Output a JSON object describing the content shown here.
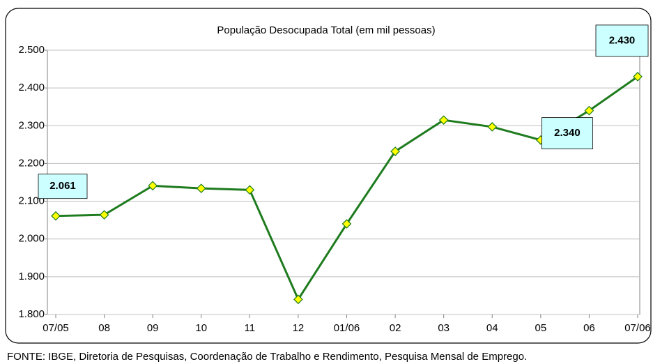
{
  "chart_data": {
    "type": "line",
    "title": "População Desocupada Total (em mil pessoas)",
    "categories": [
      "07/05",
      "08",
      "09",
      "10",
      "11",
      "12",
      "01/06",
      "02",
      "03",
      "04",
      "05",
      "06",
      "07/06"
    ],
    "series": [
      {
        "name": "População Desocupada Total",
        "color": "#1e7b1e",
        "marker_color": "#ffff00",
        "values": [
          2061,
          2064,
          2141,
          2134,
          2130,
          1840,
          2040,
          2232,
          2315,
          2297,
          2262,
          2340,
          2430
        ],
        "value_labels": [
          "2.061",
          null,
          null,
          null,
          null,
          null,
          null,
          null,
          null,
          null,
          null,
          "2.340",
          "2.430"
        ]
      }
    ],
    "ylim": [
      1800,
      2500
    ],
    "yticks": [
      {
        "value": 1800,
        "label": "1.800"
      },
      {
        "value": 1900,
        "label": "1.900"
      },
      {
        "value": 2000,
        "label": "2.000"
      },
      {
        "value": 2100,
        "label": "2.100"
      },
      {
        "value": 2200,
        "label": "2.200"
      },
      {
        "value": 2300,
        "label": "2.300"
      },
      {
        "value": 2400,
        "label": "2.400"
      },
      {
        "value": 2500,
        "label": "2.500"
      }
    ],
    "grid": true,
    "source": "FONTE: IBGE, Diretoria de Pesquisas, Coordenação de Trabalho e Rendimento, Pesquisa Mensal de Emprego."
  }
}
